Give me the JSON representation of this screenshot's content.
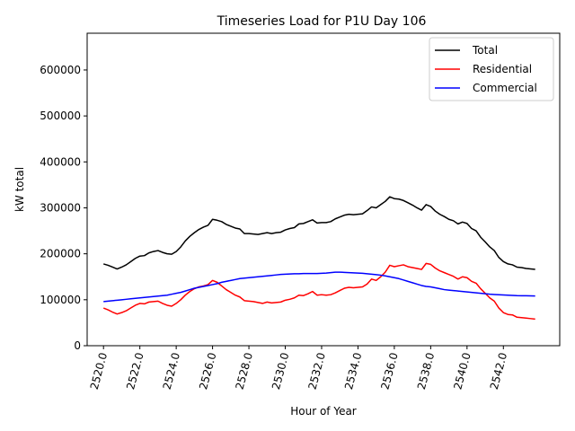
{
  "chart_data": {
    "type": "line",
    "title": "Timeseries Load for P1U   Day 106",
    "xlabel": "Hour of Year",
    "ylabel": "kW total",
    "xlim": [
      2519.1,
      2545.1
    ],
    "ylim": [
      0,
      680000
    ],
    "xticks": [
      2520,
      2522,
      2524,
      2526,
      2528,
      2530,
      2532,
      2534,
      2536,
      2538,
      2540,
      2542
    ],
    "xtick_labels": [
      "2520.0",
      "2522.0",
      "2524.0",
      "2526.0",
      "2528.0",
      "2530.0",
      "2532.0",
      "2534.0",
      "2536.0",
      "2538.0",
      "2540.0",
      "2542.0"
    ],
    "yticks": [
      0,
      100000,
      200000,
      300000,
      400000,
      500000,
      600000
    ],
    "ytick_labels": [
      "0",
      "100000",
      "200000",
      "300000",
      "400000",
      "500000",
      "600000"
    ],
    "grid": false,
    "legend_position": "top-right",
    "x_start": 2520,
    "x_step": 0.25,
    "series": [
      {
        "name": "Total",
        "color": "#000000",
        "values": [
          178000,
          175000,
          171000,
          167000,
          171000,
          176000,
          183000,
          190000,
          195000,
          196000,
          202000,
          205000,
          207000,
          203000,
          200000,
          199000,
          205000,
          215000,
          228000,
          238000,
          246000,
          253000,
          258000,
          262000,
          275000,
          273000,
          270000,
          264000,
          260000,
          256000,
          254000,
          244000,
          244000,
          243000,
          242000,
          244000,
          246000,
          244000,
          246000,
          247000,
          252000,
          255000,
          257000,
          265000,
          266000,
          270000,
          274000,
          267000,
          268000,
          268000,
          270000,
          276000,
          280000,
          284000,
          286000,
          285000,
          286000,
          287000,
          294000,
          302000,
          300000,
          307000,
          314000,
          324000,
          320000,
          319000,
          316000,
          311000,
          306000,
          300000,
          295000,
          307000,
          303000,
          293000,
          286000,
          281000,
          275000,
          272000,
          265000,
          269000,
          266000,
          255000,
          250000,
          236000,
          226000,
          215000,
          207000,
          192000,
          183000,
          178000,
          176000,
          171000,
          170000,
          168000,
          167000,
          166000
        ]
      },
      {
        "name": "Residential",
        "color": "#ff0000",
        "values": [
          82000,
          78000,
          73000,
          69000,
          72000,
          76000,
          82000,
          88000,
          92000,
          91000,
          95000,
          96000,
          97000,
          92000,
          88000,
          86000,
          92000,
          100000,
          110000,
          118000,
          124000,
          128000,
          130000,
          133000,
          142000,
          138000,
          130000,
          122000,
          116000,
          110000,
          106000,
          98000,
          97000,
          96000,
          94000,
          92000,
          95000,
          93000,
          94000,
          95000,
          99000,
          101000,
          104000,
          110000,
          109000,
          113000,
          118000,
          110000,
          111000,
          110000,
          111000,
          115000,
          120000,
          125000,
          127000,
          126000,
          127000,
          128000,
          134000,
          145000,
          142000,
          150000,
          160000,
          175000,
          172000,
          174000,
          176000,
          172000,
          170000,
          168000,
          166000,
          179000,
          177000,
          169000,
          163000,
          159000,
          155000,
          151000,
          145000,
          150000,
          148000,
          140000,
          136000,
          124000,
          114000,
          104000,
          97000,
          82000,
          72000,
          68000,
          67000,
          62000,
          61000,
          60000,
          59000,
          58000
        ]
      },
      {
        "name": "Commercial",
        "color": "#0000ff",
        "values": [
          96000,
          97000,
          98000,
          99000,
          100000,
          101000,
          102000,
          103000,
          104000,
          105000,
          106000,
          107000,
          108000,
          109000,
          110000,
          112000,
          114000,
          116000,
          119000,
          122000,
          125000,
          127000,
          129000,
          131000,
          133000,
          135000,
          138000,
          140000,
          142000,
          144000,
          146000,
          147000,
          148000,
          149000,
          150000,
          151000,
          152000,
          153000,
          154000,
          155000,
          155500,
          156000,
          156500,
          156500,
          157000,
          157000,
          157000,
          157000,
          157500,
          158000,
          159000,
          160000,
          160000,
          159500,
          159000,
          158500,
          158000,
          157500,
          156500,
          155500,
          154500,
          153500,
          152000,
          150000,
          148000,
          146000,
          143000,
          140000,
          137000,
          134000,
          131000,
          129000,
          128000,
          126000,
          124000,
          122000,
          121000,
          120000,
          119000,
          118000,
          117000,
          116000,
          115000,
          114000,
          113000,
          112000,
          111500,
          111000,
          110500,
          110000,
          109500,
          109000,
          108800,
          108600,
          108400,
          108200
        ]
      }
    ]
  }
}
